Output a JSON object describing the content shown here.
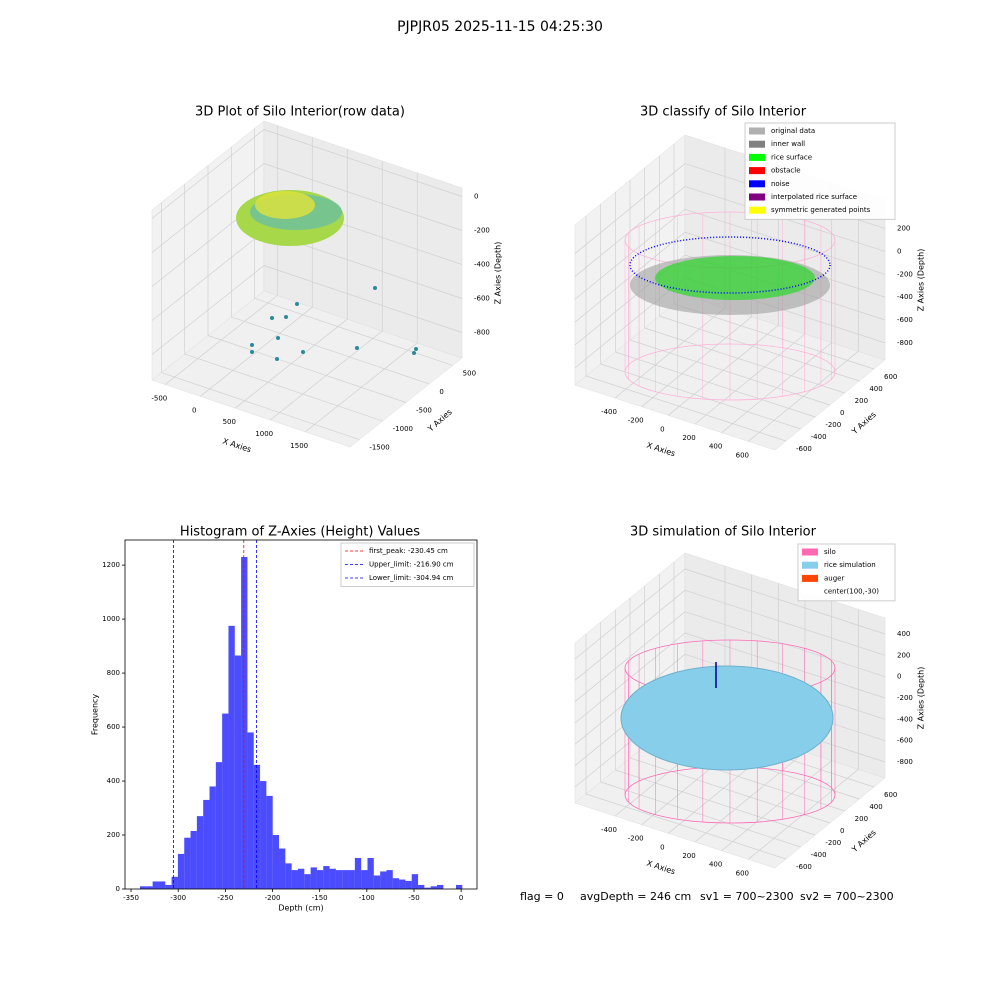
{
  "title": "PJPJR05 2025-11-15 04:25:30",
  "chart_data": [
    {
      "type": "scatter3d",
      "title": "3D Plot of Silo Interior(row data)",
      "xlabel": "X Axies",
      "ylabel": "Y Axies",
      "zlabel": "Z Axies (Depth)",
      "xlim": [
        -690,
        2140
      ],
      "ylim": [
        -1700,
        700
      ],
      "zlim": [
        -950,
        50
      ],
      "xticks": [
        -500,
        0,
        500,
        1000,
        1500
      ],
      "yticks": [
        500,
        0,
        -500,
        -1000,
        -1500
      ],
      "zticks": [
        0,
        -200,
        -400,
        -600,
        -800
      ]
    },
    {
      "type": "scatter3d",
      "title": "3D classify of Silo Interior",
      "xlabel": "X Axies",
      "ylabel": "Y Axies",
      "zlabel": "Z Axies (Depth)",
      "xlim": [
        -700,
        800
      ],
      "ylim": [
        -750,
        750
      ],
      "zlim": [
        -950,
        450
      ],
      "xticks": [
        -400,
        -200,
        0,
        200,
        400,
        600
      ],
      "yticks": [
        600,
        400,
        200,
        0,
        -200,
        -400,
        -600
      ],
      "zticks": [
        200,
        0,
        -200,
        -400,
        -600,
        -800
      ],
      "legend": "upper right",
      "legend_items": [
        {
          "name": "original data",
          "color": "#b0b0b0"
        },
        {
          "name": "inner wall",
          "color": "#808080"
        },
        {
          "name": "rice surface",
          "color": "#00ff00"
        },
        {
          "name": "obstacle",
          "color": "#ff0000"
        },
        {
          "name": "noise",
          "color": "#0000ff"
        },
        {
          "name": "interpolated rice surface",
          "color": "#800080"
        },
        {
          "name": "symmetric generated points",
          "color": "#ffff00"
        }
      ]
    },
    {
      "type": "histogram",
      "title": "Histogram of Z-Axies (Height) Values",
      "xlabel": "Depth (cm)",
      "ylabel": "Frequency",
      "color": "#0000ff",
      "bins": [
        -340.5,
        -333.8,
        -327.1,
        -320.4,
        -313.7,
        -307,
        -300.3,
        -293.6,
        -286.9,
        -280.2,
        -273.5,
        -266.8,
        -260.1,
        -253.4,
        -246.7,
        -240,
        -233.3,
        -226.6,
        -219.9,
        -213.2,
        -206.5,
        -199.8,
        -193.1,
        -186.4,
        -179.7,
        -173,
        -166.3,
        -159.6,
        -152.9,
        -146.2,
        -139.5,
        -132.8,
        -126.1,
        -119.4,
        -112.7,
        -106,
        -99.3,
        -92.6,
        -85.9,
        -79.2,
        -72.5,
        -65.8,
        -59.1,
        -52.4,
        -45.7,
        -39,
        -32.3,
        -25.6,
        -18.9,
        -12.2,
        -5.5,
        1.2
      ],
      "counts": [
        10,
        10,
        28,
        28,
        15,
        45,
        130,
        190,
        215,
        270,
        330,
        380,
        470,
        650,
        975,
        865,
        1230,
        580,
        460,
        400,
        345,
        200,
        150,
        95,
        70,
        75,
        55,
        80,
        70,
        85,
        75,
        70,
        70,
        70,
        115,
        70,
        115,
        50,
        65,
        70,
        40,
        35,
        30,
        55,
        15,
        5,
        10,
        15,
        0,
        0,
        15
      ],
      "xlim": [
        -356.4,
        16.8
      ],
      "ylim": [
        0,
        1293
      ],
      "xticks": [
        -350,
        -300,
        -250,
        -200,
        -150,
        -100,
        -50,
        0
      ],
      "yticks": [
        0,
        200,
        400,
        600,
        800,
        1000,
        1200
      ],
      "legend": "upper right",
      "vlines": [
        {
          "name": "first_peak: -230.45 cm",
          "value": -230.45,
          "color": "#ff0000"
        },
        {
          "name": "Upper_limit: -216.90 cm",
          "value": -216.9,
          "color": "#0000ff"
        },
        {
          "name": "Lower_limit: -304.94 cm",
          "value": -304.94,
          "color": "#0000ff"
        }
      ]
    },
    {
      "type": "surface3d",
      "title": "3D simulation of Silo Interior",
      "xlabel": "X Axies",
      "ylabel": "Y Axies",
      "zlabel": "Z Axies (Depth)",
      "xlim": [
        -700,
        800
      ],
      "ylim": [
        -750,
        750
      ],
      "zlim": [
        -950,
        550
      ],
      "xticks": [
        -400,
        -200,
        0,
        200,
        400,
        600
      ],
      "yticks": [
        600,
        400,
        200,
        0,
        -200,
        -400,
        -600
      ],
      "zticks": [
        400,
        200,
        0,
        -200,
        -400,
        -600,
        -800
      ],
      "legend": "upper right",
      "legend_items": [
        {
          "name": "silo",
          "color": "#ff69b4"
        },
        {
          "name": "rice simulation",
          "color": "#87ceeb"
        },
        {
          "name": "auger",
          "color": "#ff4500"
        },
        {
          "name": "center(100,-30)",
          "color": "#ffffff"
        }
      ]
    }
  ],
  "status": {
    "flag": "flag = 0",
    "avgDepth": "avgDepth = 246 cm",
    "sv1": "sv1 = 700~2300",
    "sv2": "sv2 = 700~2300"
  }
}
